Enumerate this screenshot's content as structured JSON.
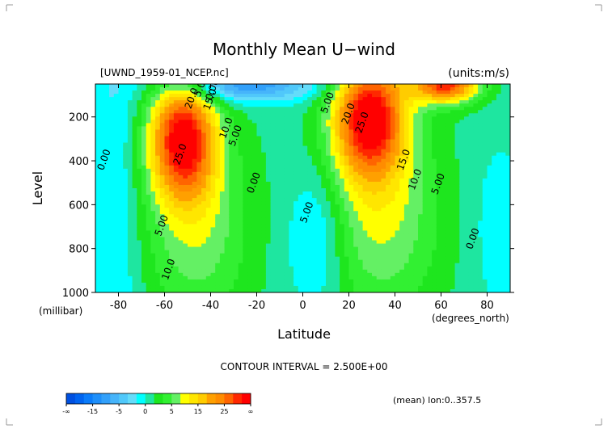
{
  "chart_data": {
    "type": "heatmap",
    "subtype": "filled-contour",
    "title": "Monthly Mean U−wind",
    "file_label": "[UWND_1959-01_NCEP.nc]",
    "units_label": "(units:m/s)",
    "xlabel": "Latitude",
    "x_units": "(degrees_north)",
    "ylabel": "Level",
    "y_units": "(millibar)",
    "xlim": [
      -90,
      90
    ],
    "ylim": [
      1000,
      50
    ],
    "y_inverted": true,
    "x_ticks": [
      -80,
      -60,
      -40,
      -20,
      0,
      20,
      40,
      60,
      80
    ],
    "y_ticks": [
      200,
      400,
      600,
      800,
      1000
    ],
    "contour_interval_text": "CONTOUR INTERVAL = 2.500E+00",
    "averaging_note": "(mean) lon:0..357.5",
    "contour_labels": [
      {
        "text": "5.00",
        "lat": -43,
        "lev": 65
      },
      {
        "text": "0.00",
        "lat": -38,
        "lev": 80
      },
      {
        "text": "20.0",
        "lat": -47,
        "lev": 120
      },
      {
        "text": "15.0",
        "lat": -39,
        "lev": 125
      },
      {
        "text": "10.0",
        "lat": -32,
        "lev": 255
      },
      {
        "text": "5.00",
        "lat": -28,
        "lev": 290
      },
      {
        "text": "25.0",
        "lat": -52,
        "lev": 375
      },
      {
        "text": "0.00",
        "lat": -85,
        "lev": 400
      },
      {
        "text": "0.00",
        "lat": -20,
        "lev": 505
      },
      {
        "text": "5.00",
        "lat": -60,
        "lev": 700
      },
      {
        "text": "10.0",
        "lat": -57,
        "lev": 900
      },
      {
        "text": "5.00",
        "lat": 12,
        "lev": 140
      },
      {
        "text": "20.0",
        "lat": 21,
        "lev": 190
      },
      {
        "text": "25.0",
        "lat": 27,
        "lev": 230
      },
      {
        "text": "15.0",
        "lat": 45,
        "lev": 400
      },
      {
        "text": "10.0",
        "lat": 50,
        "lev": 490
      },
      {
        "text": "5.00",
        "lat": 60,
        "lev": 510
      },
      {
        "text": "0.00",
        "lat": 75,
        "lev": 760
      },
      {
        "text": "5.00",
        "lat": 3,
        "lev": 640
      }
    ],
    "colorbar": {
      "boundaries": [
        "-∞",
        "-15",
        "-5",
        "0",
        "5",
        "15",
        "25",
        "∞"
      ],
      "levels": [
        -20,
        -17.5,
        -15,
        -12.5,
        -10,
        -7.5,
        -5,
        -2.5,
        0,
        2.5,
        5,
        7.5,
        10,
        12.5,
        15,
        17.5,
        20,
        22.5,
        25,
        27.5,
        30
      ],
      "colors": [
        "#0050e0",
        "#0064f0",
        "#0a7cfa",
        "#1e8ffa",
        "#32a0fa",
        "#46b4fa",
        "#50c8fa",
        "#64dcfa",
        "#00ffff",
        "#1ee6a0",
        "#1ee61e",
        "#32f032",
        "#64f064",
        "#ffff00",
        "#ffe600",
        "#ffcc00",
        "#ffa000",
        "#ff8c00",
        "#ff6400",
        "#ff2800",
        "#ff0000"
      ]
    }
  }
}
